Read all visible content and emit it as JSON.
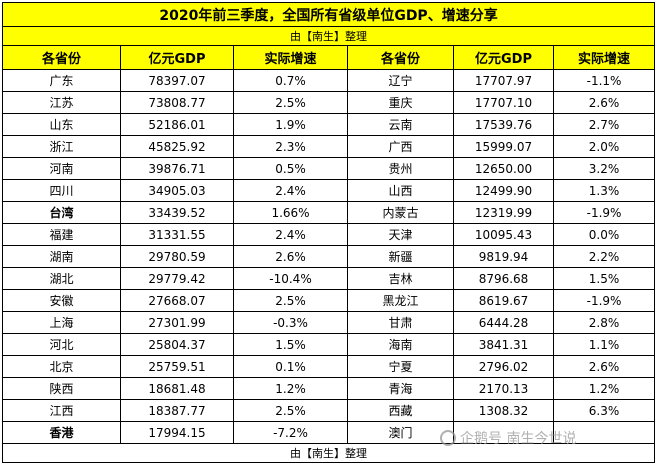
{
  "title": "2020年前三季度，全国所有省级单位GDP、增速分享",
  "subtitle": "由【南生】整理",
  "footer": "由【南生】整理",
  "watermark": "企鹅号 南生今世说",
  "headers": [
    "各省份",
    "亿元GDP",
    "实际增速",
    "各省份",
    "亿元GDP",
    "实际增速"
  ],
  "rows": [
    [
      {
        "name": "广东",
        "gdp": "78397.07",
        "growth": "0.7%"
      },
      {
        "name": "辽宁",
        "gdp": "17707.97",
        "growth": "-1.1%"
      }
    ],
    [
      {
        "name": "江苏",
        "gdp": "73808.77",
        "growth": "2.5%"
      },
      {
        "name": "重庆",
        "gdp": "17707.10",
        "growth": "2.6%"
      }
    ],
    [
      {
        "name": "山东",
        "gdp": "52186.01",
        "growth": "1.9%"
      },
      {
        "name": "云南",
        "gdp": "17539.76",
        "growth": "2.7%"
      }
    ],
    [
      {
        "name": "浙江",
        "gdp": "45825.92",
        "growth": "2.3%"
      },
      {
        "name": "广西",
        "gdp": "15999.07",
        "growth": "2.0%"
      }
    ],
    [
      {
        "name": "河南",
        "gdp": "39876.71",
        "growth": "0.5%"
      },
      {
        "name": "贵州",
        "gdp": "12650.00",
        "growth": "3.2%"
      }
    ],
    [
      {
        "name": "四川",
        "gdp": "34905.03",
        "growth": "2.4%"
      },
      {
        "name": "山西",
        "gdp": "12499.90",
        "growth": "1.3%"
      }
    ],
    [
      {
        "name": "台湾",
        "gdp": "33439.52",
        "growth": "1.66%",
        "bold": true
      },
      {
        "name": "内蒙古",
        "gdp": "12319.99",
        "growth": "-1.9%"
      }
    ],
    [
      {
        "name": "福建",
        "gdp": "31331.55",
        "growth": "2.4%"
      },
      {
        "name": "天津",
        "gdp": "10095.43",
        "growth": "0.0%"
      }
    ],
    [
      {
        "name": "湖南",
        "gdp": "29780.59",
        "growth": "2.6%"
      },
      {
        "name": "新疆",
        "gdp": "9819.94",
        "growth": "2.2%"
      }
    ],
    [
      {
        "name": "湖北",
        "gdp": "29779.42",
        "growth": "-10.4%"
      },
      {
        "name": "吉林",
        "gdp": "8796.68",
        "growth": "1.5%"
      }
    ],
    [
      {
        "name": "安徽",
        "gdp": "27668.07",
        "growth": "2.5%"
      },
      {
        "name": "黑龙江",
        "gdp": "8619.67",
        "growth": "-1.9%"
      }
    ],
    [
      {
        "name": "上海",
        "gdp": "27301.99",
        "growth": "-0.3%"
      },
      {
        "name": "甘肃",
        "gdp": "6444.28",
        "growth": "2.8%"
      }
    ],
    [
      {
        "name": "河北",
        "gdp": "25804.37",
        "growth": "1.5%"
      },
      {
        "name": "海南",
        "gdp": "3841.31",
        "growth": "1.1%"
      }
    ],
    [
      {
        "name": "北京",
        "gdp": "25759.51",
        "growth": "0.1%"
      },
      {
        "name": "宁夏",
        "gdp": "2796.02",
        "growth": "2.6%"
      }
    ],
    [
      {
        "name": "陕西",
        "gdp": "18681.48",
        "growth": "1.2%"
      },
      {
        "name": "青海",
        "gdp": "2170.13",
        "growth": "1.2%"
      }
    ],
    [
      {
        "name": "江西",
        "gdp": "18387.77",
        "growth": "2.5%"
      },
      {
        "name": "西藏",
        "gdp": "1308.32",
        "growth": "6.3%"
      }
    ],
    [
      {
        "name": "香港",
        "gdp": "17994.15",
        "growth": "-7.2%",
        "bold": true
      },
      {
        "name": "澳门",
        "gdp": "",
        "growth": ""
      }
    ]
  ]
}
